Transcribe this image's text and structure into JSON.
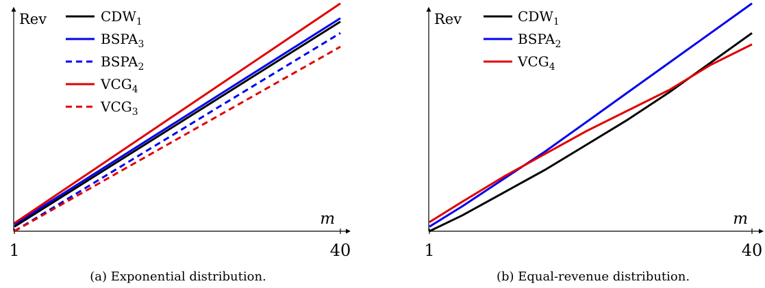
{
  "charts": [
    {
      "caption": "(a) Exponential distribution.",
      "chart_data": {
        "type": "line",
        "xlabel": "m",
        "ylabel": "Rev",
        "xlim": [
          1,
          40
        ],
        "ylim": [
          0,
          1.0
        ],
        "x_ticks": [
          "1",
          "40"
        ],
        "grid": false,
        "legend_position": "top-left",
        "x": [
          1,
          40
        ],
        "series": [
          {
            "name": "CDW",
            "subscript": "1",
            "color": "#000000",
            "dash": "solid",
            "values": [
              0.02,
              0.92
            ]
          },
          {
            "name": "BSPA",
            "subscript": "3",
            "color": "#0000ee",
            "dash": "solid",
            "values": [
              0.03,
              0.935
            ]
          },
          {
            "name": "BSPA",
            "subscript": "2",
            "color": "#0000ee",
            "dash": "dashed",
            "values": [
              0.0,
              0.87
            ]
          },
          {
            "name": "VCG",
            "subscript": "4",
            "color": "#e00000",
            "dash": "solid",
            "values": [
              0.035,
              1.0
            ]
          },
          {
            "name": "VCG",
            "subscript": "3",
            "color": "#e00000",
            "dash": "dashed",
            "values": [
              0.0,
              0.81
            ]
          }
        ]
      }
    },
    {
      "caption": "(b) Equal-revenue distribution.",
      "chart_data": {
        "type": "line",
        "xlabel": "m",
        "ylabel": "Rev",
        "xlim": [
          1,
          40
        ],
        "ylim": [
          0,
          1.0
        ],
        "x_ticks": [
          "1",
          "40"
        ],
        "grid": false,
        "legend_position": "top-left",
        "x": [
          1,
          5,
          10,
          15,
          20,
          25,
          30,
          35,
          40
        ],
        "series": [
          {
            "name": "CDW",
            "subscript": "1",
            "color": "#000000",
            "dash": "solid",
            "values": [
              0.0,
              0.07,
              0.17,
              0.27,
              0.38,
              0.49,
              0.61,
              0.74,
              0.87
            ]
          },
          {
            "name": "BSPA",
            "subscript": "2",
            "color": "#0000ee",
            "dash": "solid",
            "values": [
              0.02,
              0.11,
              0.23,
              0.35,
              0.48,
              0.61,
              0.74,
              0.87,
              1.0
            ]
          },
          {
            "name": "VCG",
            "subscript": "4",
            "color": "#e00000",
            "dash": "solid",
            "values": [
              0.04,
              0.13,
              0.24,
              0.34,
              0.44,
              0.53,
              0.62,
              0.73,
              0.82
            ]
          }
        ]
      }
    }
  ]
}
